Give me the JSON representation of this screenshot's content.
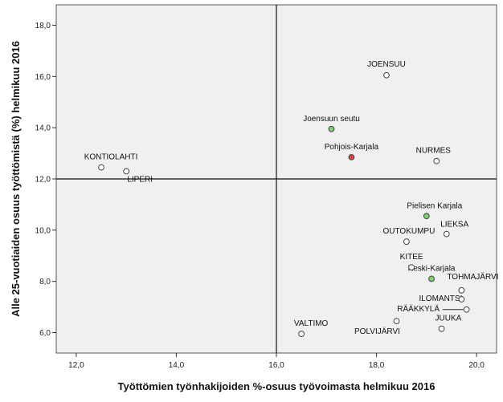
{
  "chart_data": {
    "type": "scatter",
    "title": "",
    "xlabel": "Työttömien työnhakijoiden %-osuus työvoimasta helmikuu 2016",
    "ylabel": "Alle 25-vuotiaiden osuus työttömistä (%) helmikuu 2016",
    "xlim": [
      11.6,
      20.4
    ],
    "ylim": [
      5.2,
      18.8
    ],
    "xticks": [
      "12,0",
      "14,0",
      "16,0",
      "18,0",
      "20,0"
    ],
    "yticks": [
      "6,0",
      "8,0",
      "10,0",
      "12,0",
      "14,0",
      "16,0",
      "18,0"
    ],
    "reference_lines": {
      "x": 16.0,
      "y": 12.0
    },
    "grid": false,
    "colors": {
      "plot_background": "#f0f0f0",
      "municipality": "#ffffff",
      "subregion": "#7ccf6a",
      "region": "#e0443c",
      "edge": "#444444"
    },
    "points": [
      {
        "label": "JOENSUU",
        "x": 18.2,
        "y": 16.05,
        "group": "municipality"
      },
      {
        "label": "Joensuun seutu",
        "x": 17.1,
        "y": 13.95,
        "group": "subregion"
      },
      {
        "label": "Pohjois-Karjala",
        "x": 17.5,
        "y": 12.85,
        "group": "region"
      },
      {
        "label": "NURMES",
        "x": 19.2,
        "y": 12.7,
        "group": "municipality"
      },
      {
        "label": "KONTIOLAHTI",
        "x": 12.5,
        "y": 12.45,
        "group": "municipality"
      },
      {
        "label": "LIPERI",
        "x": 13.0,
        "y": 12.3,
        "group": "municipality"
      },
      {
        "label": "Pielisen Karjala",
        "x": 19.0,
        "y": 10.55,
        "group": "subregion"
      },
      {
        "label": "LIEKSA",
        "x": 19.4,
        "y": 9.85,
        "group": "municipality"
      },
      {
        "label": "OUTOKUMPU",
        "x": 18.6,
        "y": 9.55,
        "group": "municipality"
      },
      {
        "label": "KITEE",
        "x": 18.7,
        "y": 8.55,
        "group": "municipality"
      },
      {
        "label": "Keski-Karjala",
        "x": 19.1,
        "y": 8.1,
        "group": "subregion"
      },
      {
        "label": "TOHMAJÄRVI",
        "x": 19.7,
        "y": 7.65,
        "group": "municipality"
      },
      {
        "label": "ILOMANTSI",
        "x": 19.7,
        "y": 7.3,
        "group": "municipality"
      },
      {
        "label": "RÄÄKKYLÄ",
        "x": 19.8,
        "y": 6.9,
        "group": "municipality"
      },
      {
        "label": "JUUKA",
        "x": 19.3,
        "y": 6.15,
        "group": "municipality"
      },
      {
        "label": "POLVIJÄRVI",
        "x": 18.4,
        "y": 6.45,
        "group": "municipality"
      },
      {
        "label": "VALTIMO",
        "x": 16.5,
        "y": 5.95,
        "group": "municipality"
      }
    ]
  }
}
